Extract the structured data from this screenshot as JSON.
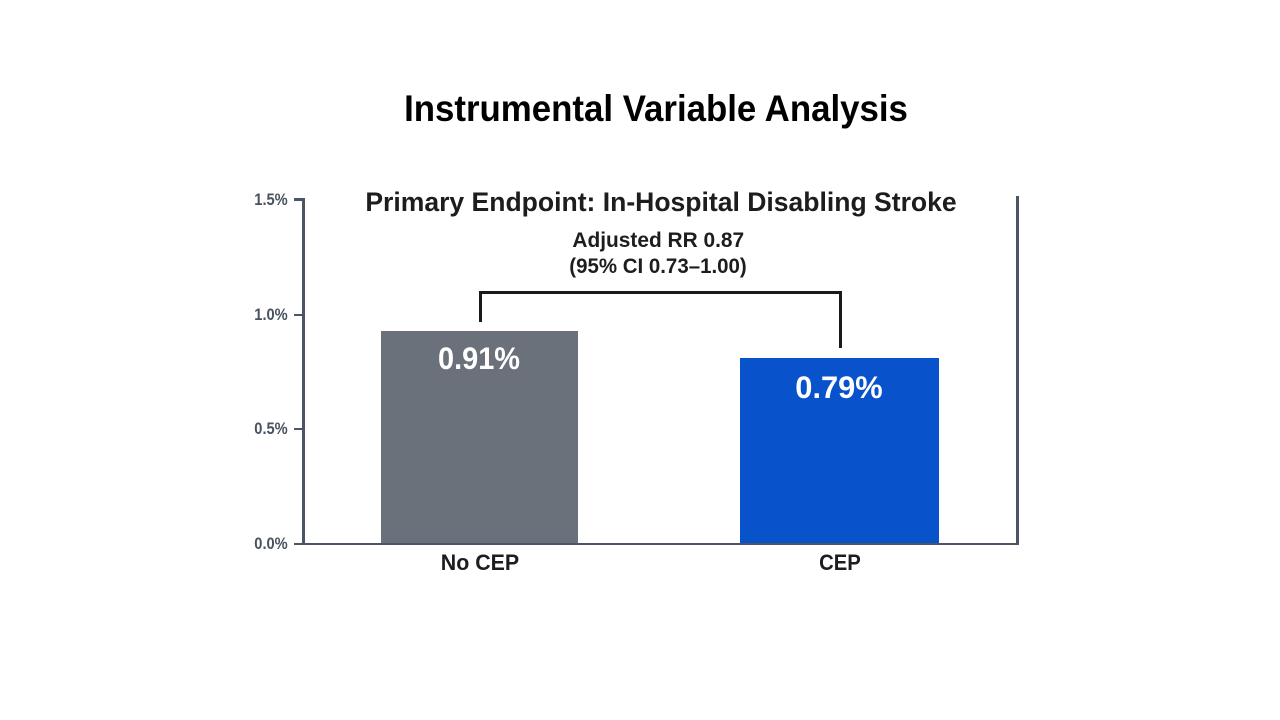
{
  "title": "Instrumental Variable Analysis",
  "chart": {
    "subtitle": "Primary Endpoint: In-Hospital Disabling Stroke",
    "annotation": {
      "line1": "Adjusted RR 0.87",
      "line2": "(95% CI 0.73–1.00)"
    },
    "y_axis": {
      "tick_labels": [
        "1.5%",
        "1.0%",
        "0.5%",
        "0.0%"
      ]
    },
    "bars": [
      {
        "category": "No CEP",
        "value_label": "0.91%",
        "color": "#6B717B"
      },
      {
        "category": "CEP",
        "value_label": "0.79%",
        "color": "#0852CC"
      }
    ],
    "colors": {
      "title_text": "#000000",
      "dark_text": "#1D1D1D",
      "bracket": "#1A1A1A",
      "axis": "#4C5565",
      "tick_label_text": "#49525F",
      "bar_value_text": "#FFFFFF"
    }
  },
  "chart_data": {
    "type": "bar",
    "title": "Instrumental Variable Analysis",
    "subtitle": "Primary Endpoint: In-Hospital Disabling Stroke",
    "categories": [
      "No CEP",
      "CEP"
    ],
    "values": [
      0.91,
      0.79
    ],
    "value_labels": [
      "0.91%",
      "0.79%"
    ],
    "unit": "percent",
    "ylabel": "",
    "xlabel": "",
    "ylim": [
      0,
      1.5
    ],
    "y_ticks": [
      0.0,
      0.5,
      1.0,
      1.5
    ],
    "y_tick_labels": [
      "0.0%",
      "0.5%",
      "1.0%",
      "1.5%"
    ],
    "annotation": "Adjusted RR 0.87 (95% CI 0.73–1.00)",
    "bar_colors": [
      "#6B717B",
      "#0852CC"
    ],
    "grid": false,
    "legend_position": "none"
  }
}
